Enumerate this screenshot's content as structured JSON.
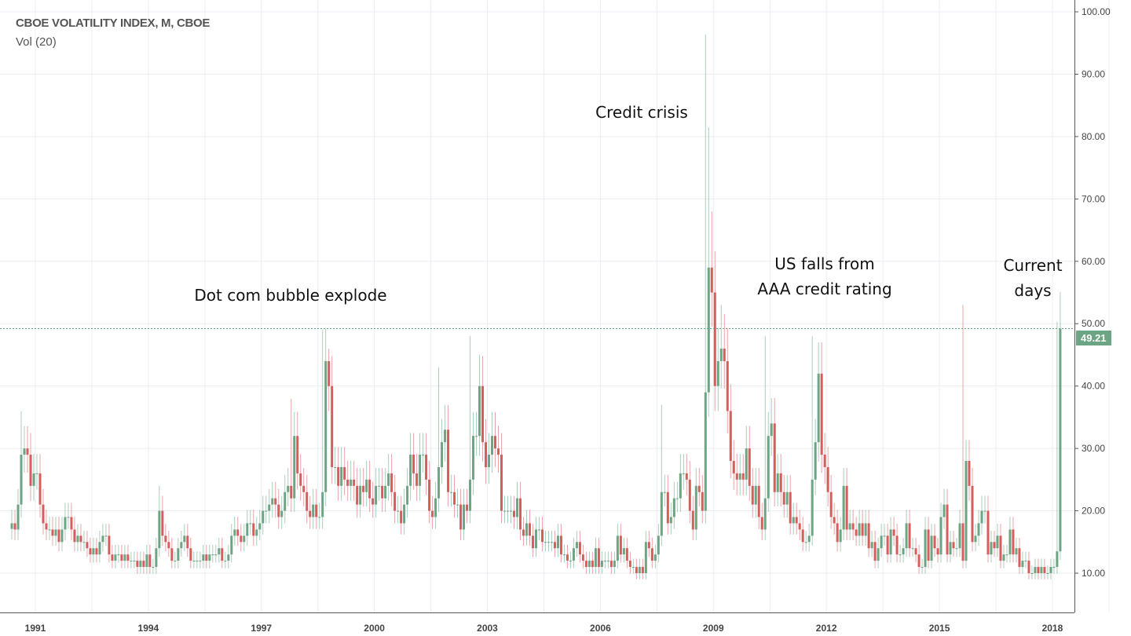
{
  "legend": {
    "title": "CBOE VOLATILITY INDEX, M, CBOE",
    "indicator": "Vol (20)"
  },
  "annotations": [
    {
      "lines": [
        "Dot com bubble explode"
      ]
    },
    {
      "lines": [
        "Credit crisis"
      ]
    },
    {
      "lines": [
        "US falls from",
        "AAA credit rating"
      ]
    },
    {
      "lines": [
        "Current",
        "days"
      ]
    }
  ],
  "last_price_label": "49.21",
  "colors": {
    "up": "#6ba583",
    "down": "#d75c5c",
    "last_price": "#6ba583",
    "grid": "#e9eef3"
  },
  "chart_data": {
    "type": "candlestick",
    "title": "CBOE VOLATILITY INDEX, M, CBOE",
    "interval": "monthly",
    "start": "1990-05",
    "ylim": [
      3,
      101
    ],
    "y_ticks": [
      "10.00",
      "20.00",
      "30.00",
      "40.00",
      "50.00",
      "60.00",
      "70.00",
      "80.00",
      "90.00",
      "100.00"
    ],
    "x_ticks": [
      "1991",
      "1994",
      "1997",
      "2000",
      "2003",
      "2006",
      "2009",
      "2012",
      "2015",
      "2018"
    ],
    "grid": true,
    "last_price": 49.21,
    "close": [
      18,
      17,
      21,
      29,
      30,
      29,
      24,
      26,
      26,
      21,
      18,
      17,
      17,
      16,
      17,
      15,
      17,
      19,
      19,
      17,
      15,
      16,
      15,
      15,
      14,
      13,
      14,
      13,
      15,
      16,
      16,
      13,
      12,
      13,
      13,
      12,
      13,
      12,
      12,
      12,
      11,
      12,
      11,
      13,
      11,
      11,
      14,
      20,
      16,
      15,
      14,
      12,
      12,
      14,
      15,
      16,
      14,
      12,
      12,
      12,
      12,
      13,
      12,
      13,
      13,
      13,
      14,
      12,
      12,
      13,
      16,
      17,
      16,
      15,
      16,
      18,
      18,
      16,
      17,
      18,
      20,
      20,
      21,
      22,
      21,
      19,
      20,
      23,
      24,
      22,
      32,
      26,
      24,
      23,
      20,
      19,
      21,
      19,
      19,
      23,
      44,
      40,
      27,
      27,
      24,
      27,
      25,
      24,
      25,
      24,
      21,
      24,
      23,
      25,
      22,
      21,
      24,
      24,
      22,
      24,
      26,
      23,
      20,
      20,
      18,
      21,
      24,
      29,
      26,
      24,
      29,
      29,
      25,
      20,
      19,
      22,
      27,
      31,
      33,
      23,
      23,
      21,
      21,
      17,
      21,
      20,
      25,
      32,
      32,
      40,
      31,
      27,
      29,
      32,
      30,
      29,
      20,
      20,
      20,
      20,
      19,
      22,
      17,
      16,
      18,
      16,
      14,
      17,
      17,
      15,
      15,
      15,
      15,
      14,
      16,
      13,
      13,
      12,
      12,
      14,
      15,
      13,
      12,
      11,
      12,
      11,
      14,
      11,
      12,
      12,
      12,
      11,
      12,
      16,
      13,
      14,
      12,
      11,
      11,
      10,
      11,
      10,
      15,
      14,
      12,
      13,
      16,
      23,
      23,
      18,
      19,
      22,
      22,
      26,
      26,
      25,
      20,
      17,
      24,
      23,
      20,
      39,
      59,
      55,
      40,
      44,
      46,
      44,
      36,
      28,
      26,
      25,
      26,
      25,
      30,
      24,
      21,
      24,
      19,
      17,
      22,
      32,
      34,
      23,
      26,
      23,
      21,
      23,
      18,
      19,
      18,
      17,
      15,
      15,
      16,
      25,
      31,
      42,
      29,
      27,
      23,
      19,
      18,
      15,
      17,
      24,
      17,
      18,
      17,
      16,
      18,
      16,
      18,
      14,
      15,
      12,
      14,
      16,
      16,
      13,
      17,
      16,
      13,
      13,
      14,
      18,
      14,
      14,
      13,
      11,
      11,
      17,
      12,
      16,
      14,
      13,
      19,
      21,
      13,
      15,
      14,
      14,
      18,
      12,
      28,
      24,
      15,
      16,
      18,
      20,
      20,
      13,
      15,
      14,
      16,
      12,
      13,
      13,
      17,
      13,
      14,
      11,
      12,
      12,
      10,
      10,
      11,
      10,
      11,
      10,
      10,
      11,
      11,
      13.5,
      49.21
    ],
    "notable_highs": {
      "1990-08": 36,
      "1994-04": 24,
      "1997-10": 38,
      "1998-08": 49,
      "1998-10": 46,
      "2001-09": 43,
      "2002-07": 48,
      "2002-10": 45,
      "2007-08": 37,
      "2008-10": 96.4,
      "2008-11": 81.5,
      "2008-12": 68,
      "2009-03": 53,
      "2010-05": 48,
      "2011-08": 48,
      "2015-08": 53,
      "2018-02": 50.3
    }
  }
}
